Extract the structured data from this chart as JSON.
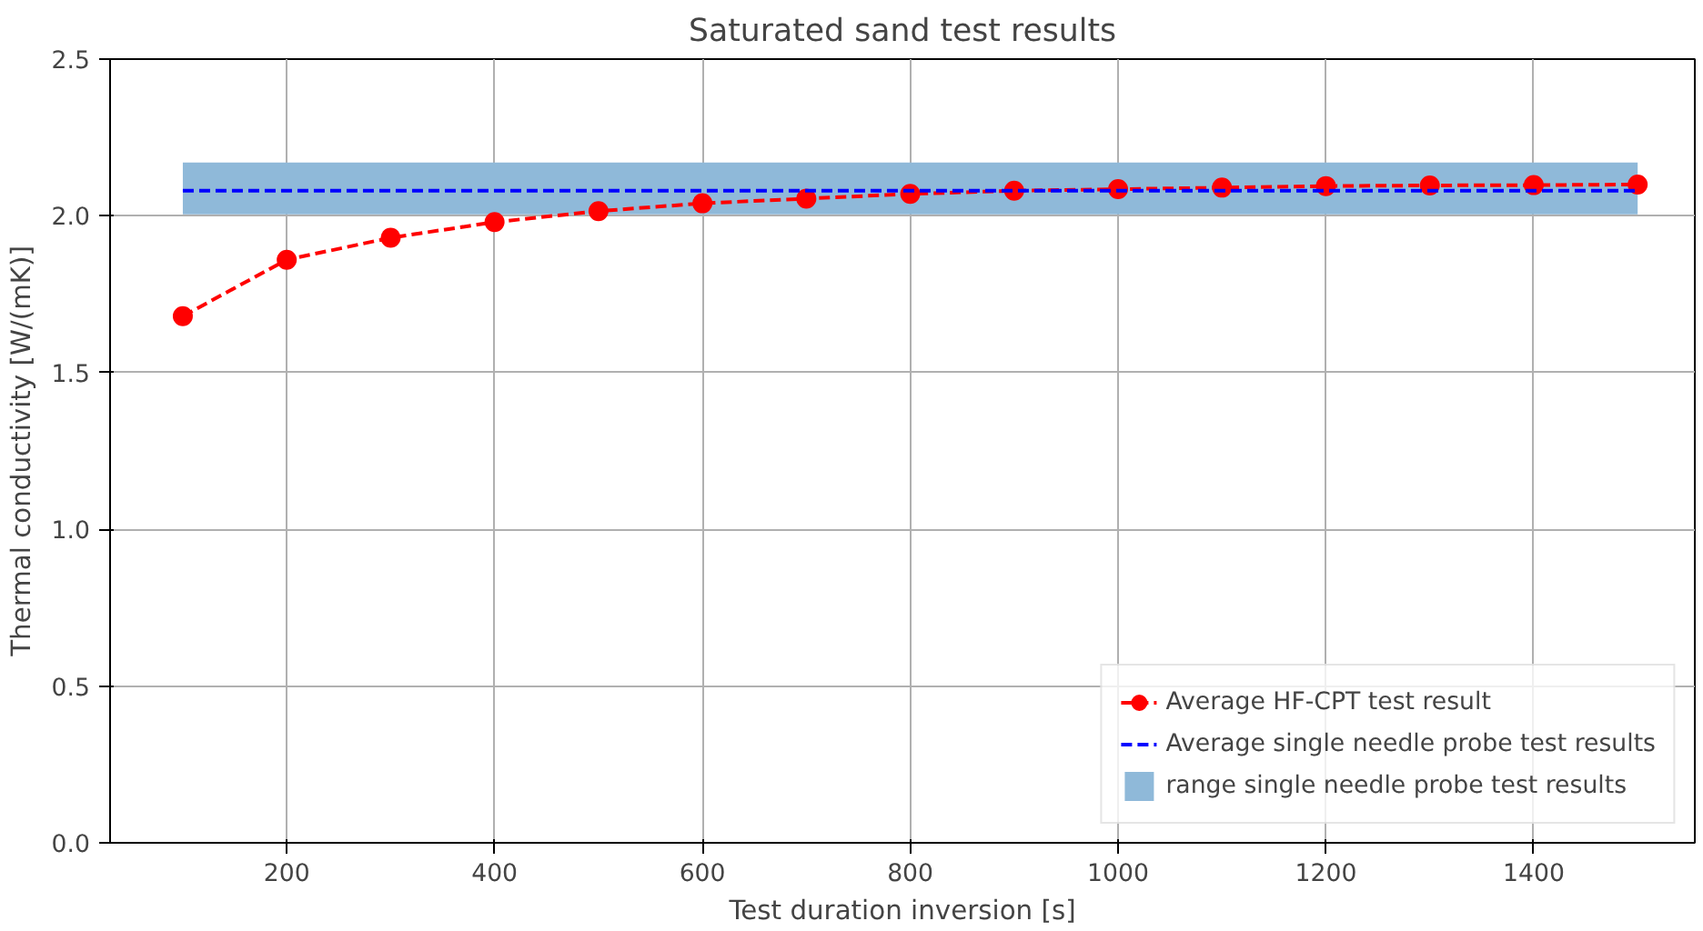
{
  "chart_data": {
    "type": "line",
    "title": "Saturated sand test results",
    "xlabel": "Test duration inversion [s]",
    "ylabel": "Thermal conductivity [W/(mK)]",
    "xlim": [
      30,
      1555
    ],
    "xticks": [
      200,
      400,
      600,
      800,
      1000,
      1200,
      1400
    ],
    "ylim": [
      0,
      2.5
    ],
    "yticks": [
      {
        "value": 0,
        "label": "0.0"
      },
      0.5,
      {
        "value": 1,
        "label": "1.0"
      },
      1.5,
      {
        "value": 2,
        "label": "2.0"
      },
      2.5
    ],
    "grid": true,
    "legend": "bottom right",
    "series": [
      {
        "name": "Average HF-CPT test result",
        "type": "line",
        "color": "#ff0000",
        "marker": "circle",
        "line_style": "dashed",
        "x": [
          100,
          200,
          300,
          400,
          500,
          600,
          700,
          800,
          900,
          1000,
          1100,
          1200,
          1300,
          1400,
          1500
        ],
        "values": [
          1.68,
          1.86,
          1.93,
          1.98,
          2.015,
          2.04,
          2.055,
          2.07,
          2.08,
          2.085,
          2.09,
          2.095,
          2.097,
          2.098,
          2.1
        ]
      },
      {
        "name": "Average single needle probe test results",
        "color": "#0000ff",
        "marker": "none",
        "line_style": "dashed",
        "x": [
          100,
          1500
        ],
        "values": [
          2.08,
          2.08
        ]
      }
    ],
    "bands": [
      {
        "axis": "y",
        "from": 2.005,
        "to": 2.17,
        "label": "range single needle probe test results",
        "color": "#8fb9d9"
      }
    ]
  }
}
